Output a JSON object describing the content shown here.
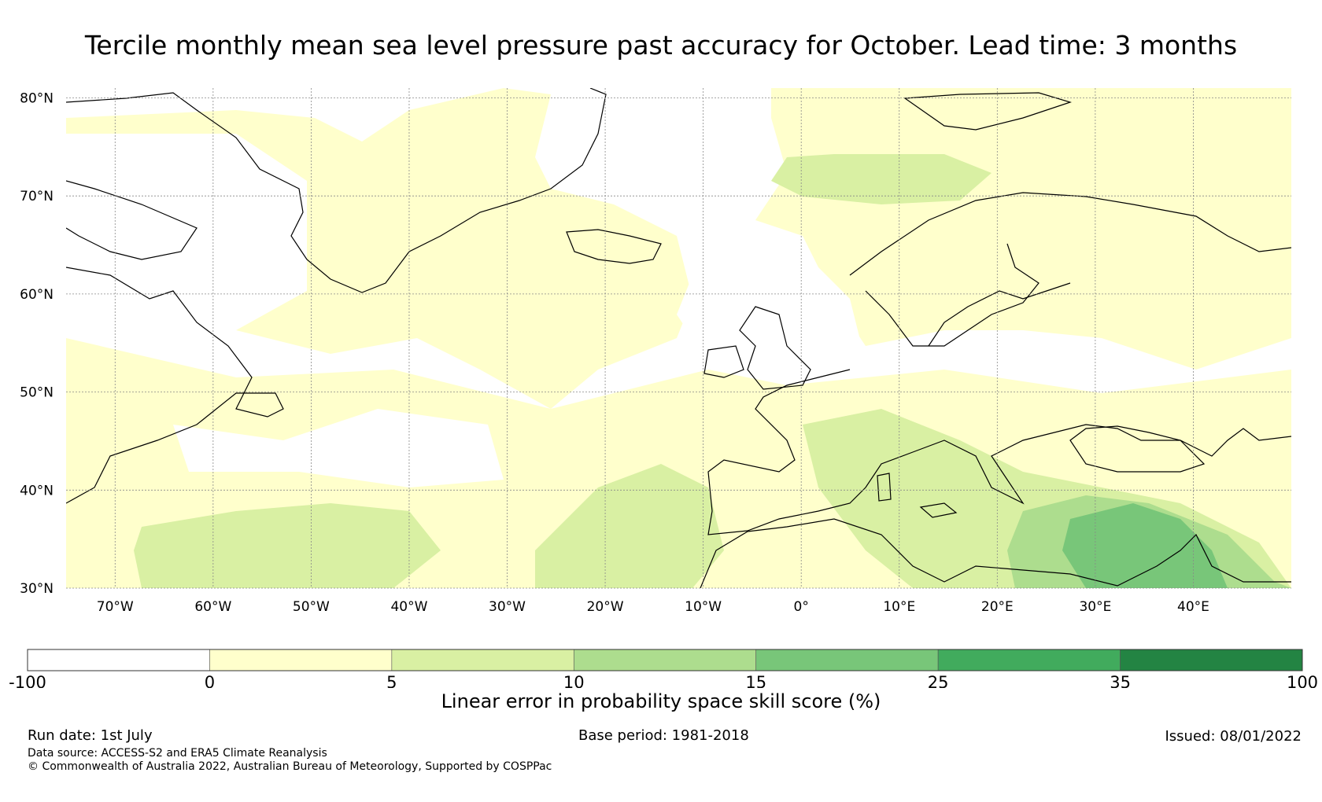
{
  "title": "Tercile monthly mean sea level pressure past accuracy for October. Lead time: 3 months",
  "map": {
    "lon_range": [
      -75,
      50
    ],
    "lat_range": [
      30,
      81
    ],
    "lat_ticks": [
      {
        "value": 80,
        "label": "80°N"
      },
      {
        "value": 70,
        "label": "70°N"
      },
      {
        "value": 60,
        "label": "60°N"
      },
      {
        "value": 50,
        "label": "50°N"
      },
      {
        "value": 40,
        "label": "40°N"
      },
      {
        "value": 30,
        "label": "30°N"
      }
    ],
    "lon_ticks": [
      {
        "value": -70,
        "label": "70°W"
      },
      {
        "value": -60,
        "label": "60°W"
      },
      {
        "value": -50,
        "label": "50°W"
      },
      {
        "value": -40,
        "label": "40°W"
      },
      {
        "value": -30,
        "label": "30°W"
      },
      {
        "value": -20,
        "label": "20°W"
      },
      {
        "value": -10,
        "label": "10°W"
      },
      {
        "value": 0,
        "label": "0°"
      },
      {
        "value": 10,
        "label": "10°E"
      },
      {
        "value": 20,
        "label": "20°E"
      },
      {
        "value": 30,
        "label": "30°E"
      },
      {
        "value": 40,
        "label": "40°E"
      }
    ],
    "grid": true,
    "coastline_color": "#000000"
  },
  "colorbar": {
    "bins": [
      {
        "from": "-100",
        "to": "0",
        "color": "#ffffff"
      },
      {
        "from": "0",
        "to": "5",
        "color": "#ffffcc"
      },
      {
        "from": "5",
        "to": "10",
        "color": "#d9f0a3"
      },
      {
        "from": "10",
        "to": "15",
        "color": "#addd8e"
      },
      {
        "from": "15",
        "to": "25",
        "color": "#78c679"
      },
      {
        "from": "25",
        "to": "35",
        "color": "#41ab5d"
      },
      {
        "from": "35",
        "to": "100",
        "color": "#238443"
      }
    ],
    "labels": [
      "-100",
      "0",
      "5",
      "10",
      "15",
      "25",
      "35",
      "100"
    ],
    "title": "Linear error in probability space skill score (%)"
  },
  "footer": {
    "run_date": "Run date: 1st July",
    "base_period": "Base period: 1981-2018",
    "issued": "Issued: 08/01/2022",
    "data_source": "Data source: ACCESS-S2 and ERA5 Climate Reanalysis",
    "copyright": "© Commonwealth of Australia 2022, Australian Bureau of Meteorology, Supported by COSPPac"
  }
}
